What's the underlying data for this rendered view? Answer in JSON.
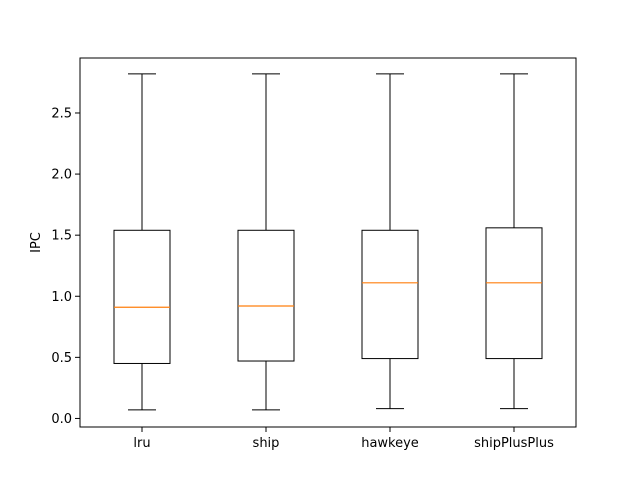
{
  "chart_data": {
    "type": "box",
    "title": "",
    "xlabel": "",
    "ylabel": "IPC",
    "ylim": [
      -0.07,
      2.95
    ],
    "yticks": [
      0.0,
      0.5,
      1.0,
      1.5,
      2.0,
      2.5
    ],
    "ytick_labels": [
      "0.0",
      "0.5",
      "1.0",
      "1.5",
      "2.0",
      "2.5"
    ],
    "grid": false,
    "categories": [
      "lru",
      "ship",
      "hawkeye",
      "shipPlusPlus"
    ],
    "boxes": [
      {
        "category": "lru",
        "whisker_low": 0.07,
        "q1": 0.45,
        "median": 0.91,
        "q3": 1.54,
        "whisker_high": 2.82
      },
      {
        "category": "ship",
        "whisker_low": 0.07,
        "q1": 0.47,
        "median": 0.92,
        "q3": 1.54,
        "whisker_high": 2.82
      },
      {
        "category": "hawkeye",
        "whisker_low": 0.08,
        "q1": 0.49,
        "median": 1.11,
        "q3": 1.54,
        "whisker_high": 2.82
      },
      {
        "category": "shipPlusPlus",
        "whisker_low": 0.08,
        "q1": 0.49,
        "median": 1.11,
        "q3": 1.56,
        "whisker_high": 2.82
      }
    ],
    "colors": {
      "box": "#000000",
      "median": "#ff7f0e",
      "background": "#ffffff"
    }
  }
}
